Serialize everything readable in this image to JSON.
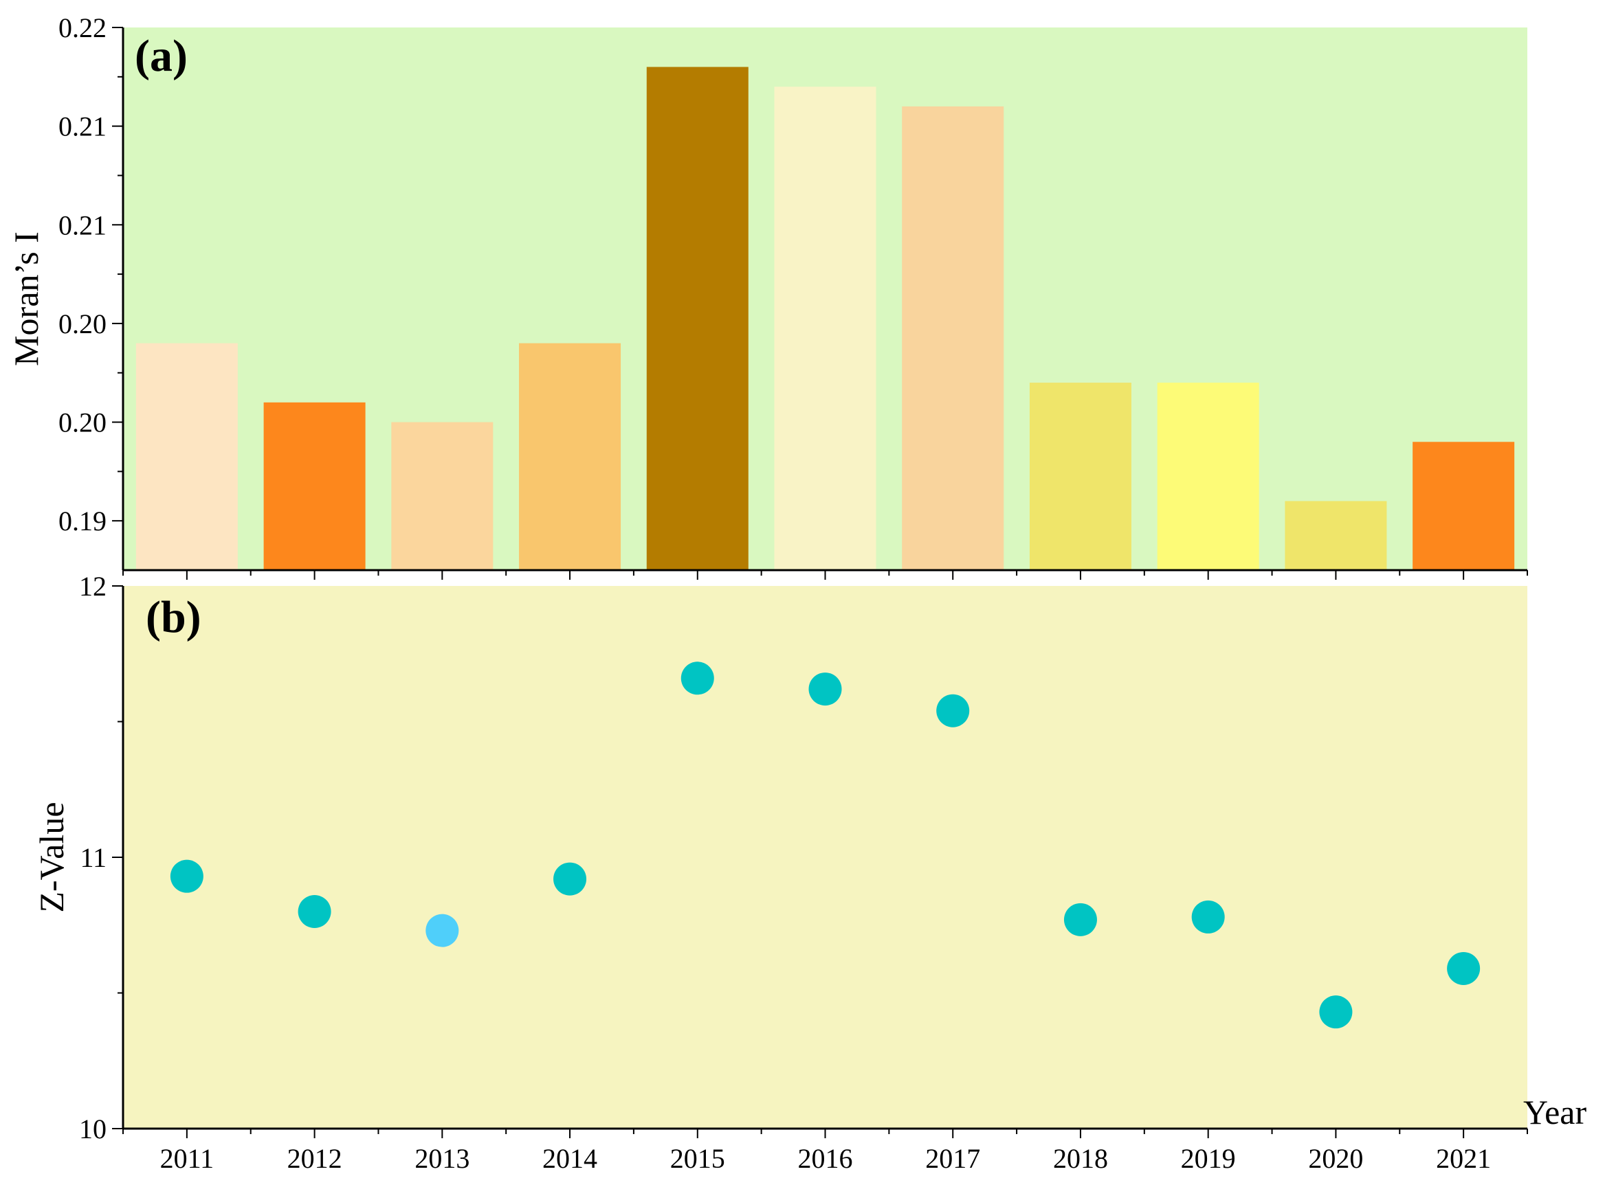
{
  "chart_data": [
    {
      "type": "bar",
      "panel_label": "(a)",
      "categories": [
        "2011",
        "2012",
        "2013",
        "2014",
        "2015",
        "2016",
        "2017",
        "2018",
        "2019",
        "2020",
        "2021"
      ],
      "values": [
        0.204,
        0.201,
        0.2,
        0.204,
        0.218,
        0.217,
        0.216,
        0.202,
        0.202,
        0.196,
        0.199
      ],
      "bar_colors": [
        "#fde5c2",
        "#fd871c",
        "#fbd69d",
        "#f9c66d",
        "#b47c00",
        "#f9f3c6",
        "#f9d49d",
        "#efe56a",
        "#fdfb77",
        "#efe56a",
        "#fd871c"
      ],
      "ylabel": "Moran’s I",
      "ylim": [
        0.1925,
        0.22
      ],
      "ytick_labels": [
        "0.19",
        "0.20",
        "0.20",
        "0.21",
        "0.21",
        "0.22"
      ],
      "yticks": [
        0.195,
        0.2,
        0.205,
        0.21,
        0.215,
        0.22
      ],
      "background": "#d9f8c0",
      "grid": false
    },
    {
      "type": "scatter",
      "panel_label": "(b)",
      "x": [
        "2011",
        "2012",
        "2013",
        "2014",
        "2015",
        "2016",
        "2017",
        "2018",
        "2019",
        "2020",
        "2021"
      ],
      "y": [
        10.93,
        10.8,
        10.73,
        10.92,
        11.66,
        11.62,
        11.54,
        10.77,
        10.78,
        10.43,
        10.59
      ],
      "point_colors": [
        "#00c4c3",
        "#00c4c3",
        "#4fcffa",
        "#00c4c3",
        "#00c4c3",
        "#00c4c3",
        "#00c4c3",
        "#00c4c3",
        "#00c4c3",
        "#00c4c3",
        "#00c4c3"
      ],
      "ylabel": "Z-Value",
      "xlabel": "Year",
      "ylim": [
        10,
        12
      ],
      "ytick_labels": [
        "10",
        "11",
        "12"
      ],
      "yticks": [
        10,
        11,
        12
      ],
      "xtick_labels": [
        "2011",
        "2012",
        "2013",
        "2014",
        "2015",
        "2016",
        "2017",
        "2018",
        "2019",
        "2020",
        "2021"
      ],
      "background": "#f6f4c0",
      "grid": false
    }
  ]
}
